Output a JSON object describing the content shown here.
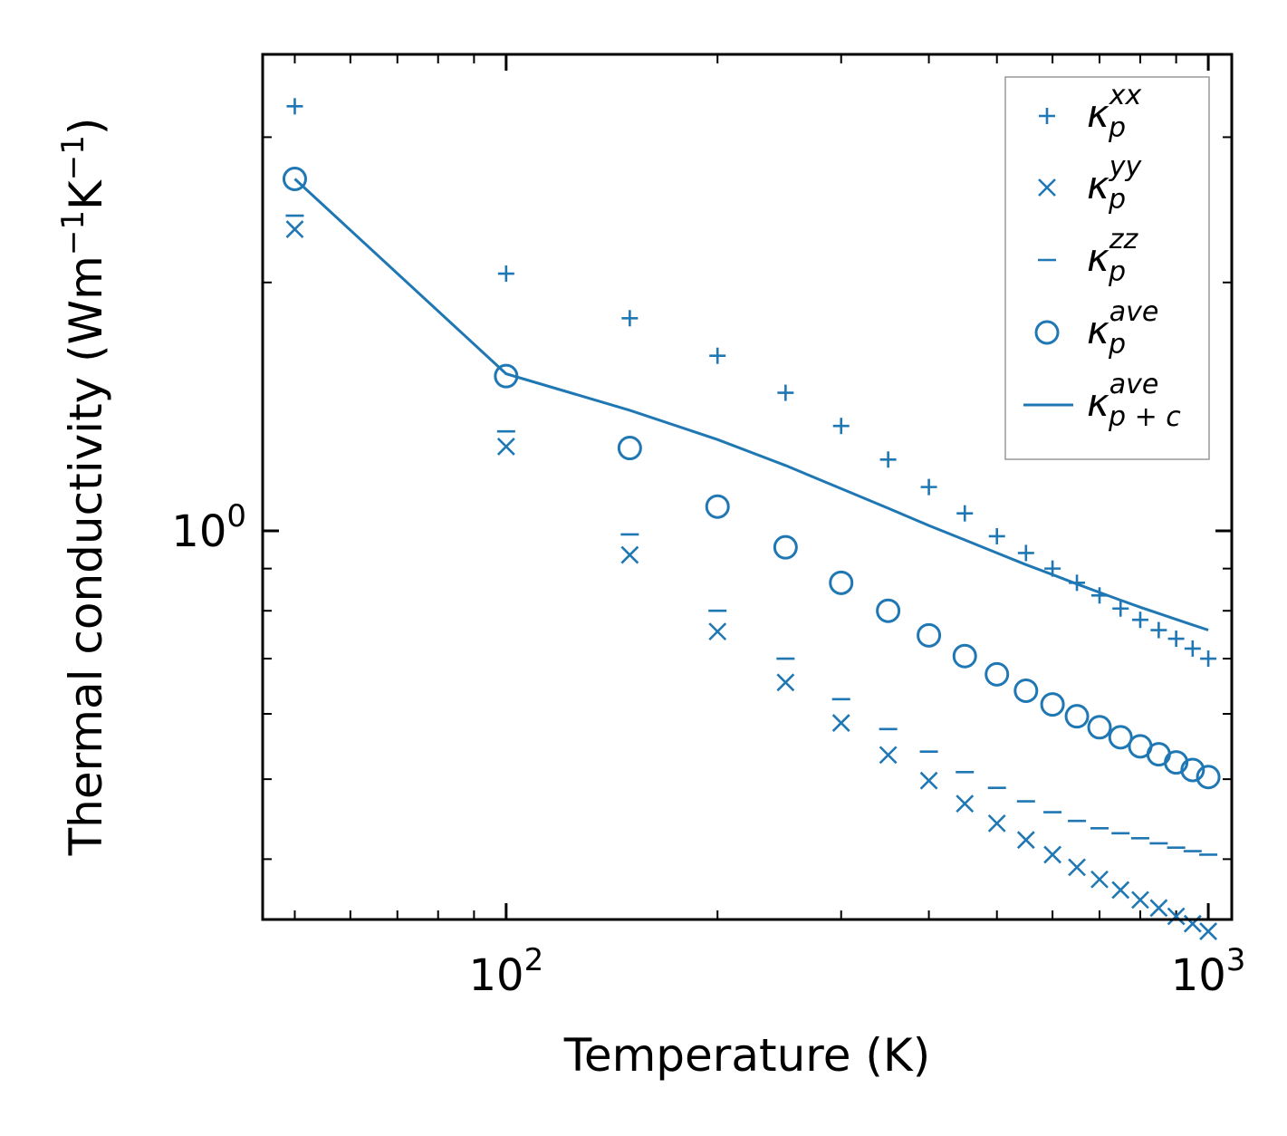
{
  "colors": {
    "series": "#1f77b4",
    "axis": "#000000",
    "legend_border": "#999999"
  },
  "chart_data": {
    "type": "scatter",
    "xscale": "log",
    "yscale": "log",
    "xlabel": "Temperature (K)",
    "ylabel": {
      "text": "Thermal conductivity (Wm",
      "sup1": "−1",
      "mid": "K",
      "sup2": "−1",
      "end": ")"
    },
    "xlim": [
      45,
      1080
    ],
    "ylim": [
      0.338,
      3.78
    ],
    "xticks": [
      {
        "value": 100,
        "base": "10",
        "exp": "2"
      },
      {
        "value": 1000,
        "base": "10",
        "exp": "3"
      }
    ],
    "yticks": [
      {
        "value": 1,
        "base": "10",
        "exp": "0"
      }
    ],
    "x": [
      50,
      100,
      150,
      200,
      250,
      300,
      350,
      400,
      450,
      500,
      550,
      600,
      650,
      700,
      750,
      800,
      850,
      900,
      950,
      1000
    ],
    "series": [
      {
        "key": "kxx",
        "name": "κ_p^xx",
        "marker": "plus",
        "values": [
          3.27,
          2.05,
          1.81,
          1.63,
          1.47,
          1.34,
          1.22,
          1.13,
          1.05,
          0.985,
          0.94,
          0.9,
          0.865,
          0.835,
          0.805,
          0.78,
          0.758,
          0.74,
          0.72,
          0.7
        ]
      },
      {
        "key": "kyy",
        "name": "κ_p^yy",
        "marker": "x",
        "values": [
          2.32,
          1.265,
          0.935,
          0.755,
          0.655,
          0.585,
          0.535,
          0.498,
          0.467,
          0.442,
          0.422,
          0.405,
          0.391,
          0.378,
          0.367,
          0.357,
          0.349,
          0.341,
          0.334,
          0.327
        ]
      },
      {
        "key": "kzz",
        "name": "κ_p^zz",
        "marker": "hline",
        "values": [
          2.41,
          1.32,
          0.99,
          0.8,
          0.7,
          0.625,
          0.575,
          0.54,
          0.51,
          0.488,
          0.47,
          0.456,
          0.445,
          0.436,
          0.43,
          0.424,
          0.418,
          0.413,
          0.409,
          0.405
        ]
      },
      {
        "key": "kave",
        "name": "κ_p^ave",
        "marker": "circle",
        "values": [
          2.67,
          1.54,
          1.26,
          1.07,
          0.955,
          0.865,
          0.8,
          0.747,
          0.705,
          0.67,
          0.64,
          0.616,
          0.596,
          0.578,
          0.562,
          0.548,
          0.536,
          0.524,
          0.513,
          0.503
        ]
      },
      {
        "key": "kpc",
        "name": "κ_p+c^ave",
        "marker": "line",
        "values": [
          2.67,
          1.55,
          1.4,
          1.29,
          1.2,
          1.125,
          1.065,
          1.015,
          0.975,
          0.94,
          0.91,
          0.885,
          0.862,
          0.842,
          0.824,
          0.808,
          0.794,
          0.781,
          0.769,
          0.758
        ]
      }
    ],
    "legend": {
      "location": "top-right",
      "entries": [
        {
          "key": "kxx",
          "base": "κ",
          "sub": "p",
          "sup": "xx"
        },
        {
          "key": "kyy",
          "base": "κ",
          "sub": "p",
          "sup": "yy"
        },
        {
          "key": "kzz",
          "base": "κ",
          "sub": "p",
          "sup": "zz"
        },
        {
          "key": "kave",
          "base": "κ",
          "sub": "p",
          "sup": "ave"
        },
        {
          "key": "kpc",
          "base": "κ",
          "sub": "p + c",
          "sup": "ave"
        }
      ]
    }
  }
}
